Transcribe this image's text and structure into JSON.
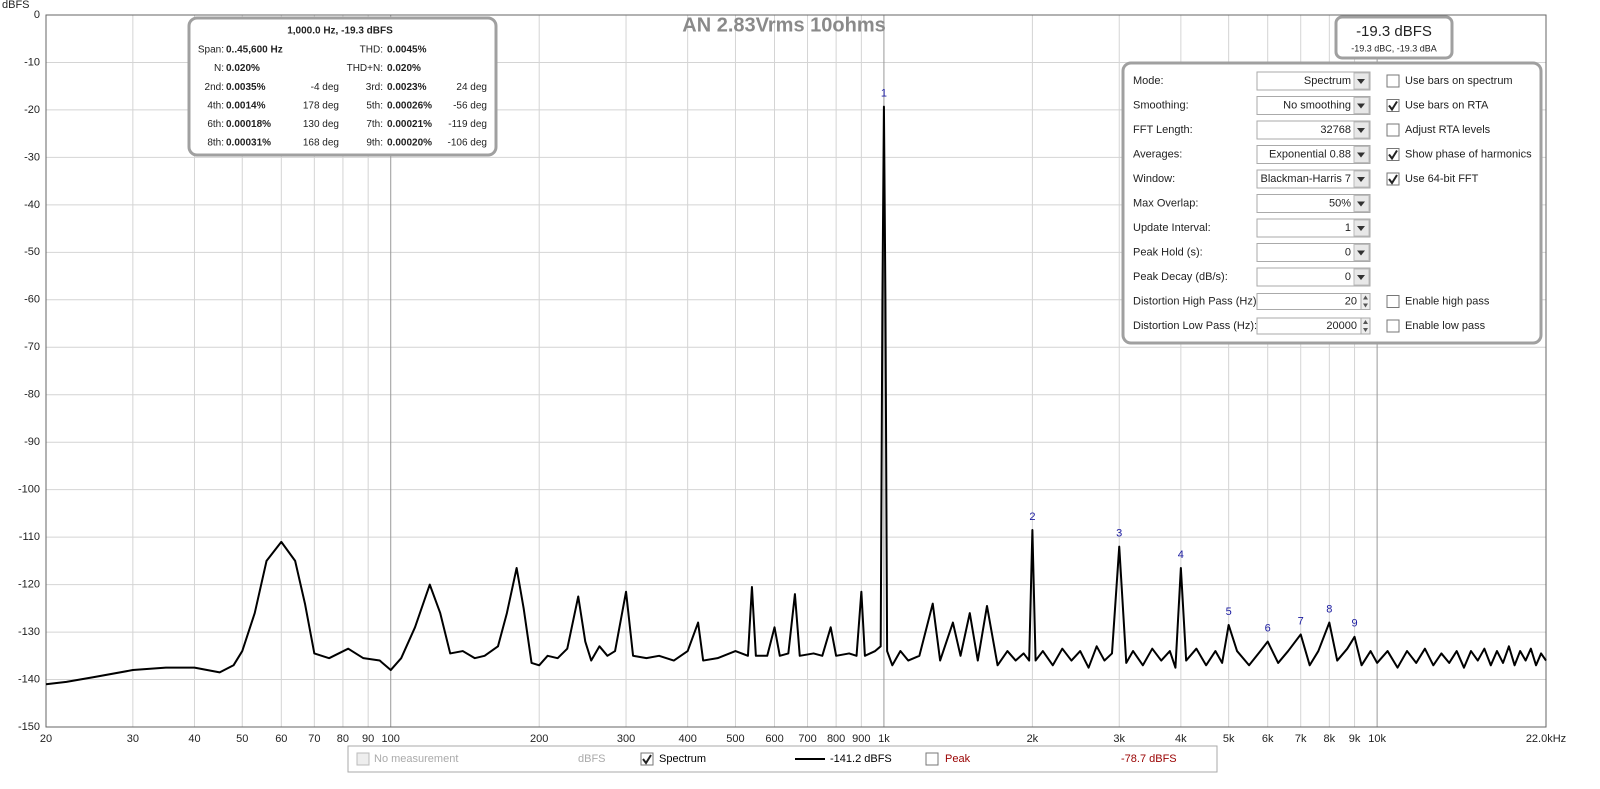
{
  "chart_data": {
    "type": "line",
    "title": "AN 2.83Vrms 10ohms",
    "y_label": "dBFS",
    "xscale": "log",
    "xlim": [
      20,
      22000
    ],
    "ylim": [
      -150,
      0
    ],
    "grid": true,
    "xticks": [
      20,
      30,
      40,
      50,
      60,
      70,
      80,
      90,
      100,
      200,
      300,
      400,
      500,
      600,
      700,
      800,
      900,
      {
        "value": 1000,
        "label": "1k"
      },
      {
        "value": 2000,
        "label": "2k"
      },
      {
        "value": 3000,
        "label": "3k"
      },
      {
        "value": 4000,
        "label": "4k"
      },
      {
        "value": 5000,
        "label": "5k"
      },
      {
        "value": 6000,
        "label": "6k"
      },
      {
        "value": 7000,
        "label": "7k"
      },
      {
        "value": 8000,
        "label": "8k"
      },
      {
        "value": 9000,
        "label": "9k"
      },
      {
        "value": 10000,
        "label": "10k"
      },
      {
        "value": 22000,
        "label": "22.0kHz"
      }
    ],
    "yticks": [
      0,
      -10,
      -20,
      -30,
      -40,
      -50,
      -60,
      -70,
      -80,
      -90,
      -100,
      -110,
      -120,
      -130,
      -140,
      -150
    ],
    "x": [
      20,
      22,
      25,
      30,
      35,
      40,
      45,
      48,
      50,
      53,
      56,
      60,
      64,
      67,
      70,
      75,
      82,
      88,
      95,
      100,
      105,
      112,
      120,
      126,
      132,
      140,
      148,
      155,
      165,
      172,
      180,
      186,
      193,
      200,
      208,
      218,
      228,
      240,
      248,
      255,
      265,
      275,
      285,
      300,
      310,
      330,
      350,
      375,
      400,
      420,
      430,
      460,
      500,
      530,
      540,
      550,
      580,
      600,
      615,
      640,
      660,
      675,
      720,
      750,
      780,
      800,
      850,
      880,
      900,
      915,
      960,
      985,
      993,
      1000,
      1007,
      1015,
      1040,
      1080,
      1120,
      1180,
      1256,
      1300,
      1380,
      1430,
      1493,
      1550,
      1618,
      1700,
      1780,
      1850,
      1920,
      1970,
      2000,
      2030,
      2100,
      2200,
      2300,
      2400,
      2500,
      2600,
      2700,
      2800,
      2900,
      3000,
      3100,
      3200,
      3350,
      3500,
      3650,
      3800,
      3900,
      4000,
      4100,
      4300,
      4500,
      4700,
      4850,
      5000,
      5200,
      5500,
      5800,
      6000,
      6300,
      6600,
      7000,
      7300,
      7600,
      8000,
      8300,
      8700,
      9000,
      9300,
      9700,
      10000,
      10500,
      11000,
      11500,
      12000,
      12500,
      13000,
      13500,
      14000,
      14500,
      15000,
      15500,
      16000,
      16500,
      17000,
      17500,
      18000,
      18500,
      19000,
      19500,
      20000,
      20500,
      21000,
      21500,
      22000
    ],
    "series": [
      {
        "name": "Spectrum",
        "color": "#000000",
        "values": [
          -141,
          -140.5,
          -139.5,
          -138,
          -137.5,
          -137.5,
          -138.5,
          -137,
          -134,
          -126,
          -115,
          -111,
          -115,
          -124,
          -134.5,
          -135.5,
          -133.5,
          -135.5,
          -136,
          -138,
          -135.5,
          -129,
          -120,
          -126,
          -134.5,
          -134,
          -135.5,
          -135,
          -133,
          -126,
          -116.5,
          -125,
          -136.5,
          -137,
          -135,
          -135.5,
          -133.5,
          -122.5,
          -132,
          -136,
          -133,
          -135,
          -134,
          -121.5,
          -135,
          -135.5,
          -135,
          -136,
          -134,
          -128,
          -136,
          -135.5,
          -134,
          -135,
          -120.5,
          -135,
          -135,
          -129,
          -135,
          -134.5,
          -122,
          -135,
          -134.5,
          -135,
          -129,
          -135,
          -134.5,
          -135,
          -121.5,
          -135,
          -134,
          -133,
          -60,
          -19.3,
          -60,
          -134,
          -137,
          -134,
          -136,
          -135,
          -124,
          -136,
          -128,
          -135,
          -126,
          -136,
          -124.5,
          -137,
          -134,
          -136,
          -134.5,
          -136,
          -108.5,
          -136,
          -134,
          -137,
          -133.5,
          -136,
          -134,
          -137.5,
          -133,
          -136,
          -134.5,
          -112,
          -136.5,
          -134,
          -137,
          -133.5,
          -136,
          -134,
          -137.5,
          -116.5,
          -136,
          -133.5,
          -137,
          -134,
          -136.5,
          -128.5,
          -134,
          -137,
          -134,
          -132,
          -136.5,
          -134,
          -130.5,
          -137,
          -134,
          -128,
          -136,
          -133.5,
          -131,
          -137,
          -134,
          -136.5,
          -134,
          -137.5,
          -134,
          -136.5,
          -133.5,
          -137,
          -134.5,
          -136.5,
          -134,
          -137.5,
          -134,
          -136,
          -133.5,
          -137,
          -134,
          -136.5,
          -133,
          -137,
          -134,
          -136,
          -133.5,
          -137,
          -134.5,
          -136
        ]
      }
    ],
    "harmonic_markers": [
      {
        "label": "1",
        "x": 1000,
        "y": -19.3
      },
      {
        "label": "2",
        "x": 2000,
        "y": -108.5
      },
      {
        "label": "3",
        "x": 3000,
        "y": -112
      },
      {
        "label": "4",
        "x": 4000,
        "y": -116.5
      },
      {
        "label": "5",
        "x": 5000,
        "y": -128.5
      },
      {
        "label": "6",
        "x": 6000,
        "y": -132
      },
      {
        "label": "7",
        "x": 7000,
        "y": -130.5
      },
      {
        "label": "8",
        "x": 8000,
        "y": -128
      },
      {
        "label": "9",
        "x": 9000,
        "y": -131
      }
    ]
  },
  "stats": {
    "title": "1,000.0 Hz, -19.3 dBFS",
    "rows": [
      [
        {
          "label": "Span:",
          "value": "0..45,600 Hz"
        },
        {
          "label": "THD:",
          "value": "0.0045%"
        }
      ],
      [
        {
          "label": "N:",
          "value": "0.020%"
        },
        {
          "label": "THD+N:",
          "value": "0.020%"
        }
      ],
      [
        {
          "label": "2nd:",
          "value": "0.0035%",
          "phase": "-4 deg"
        },
        {
          "label": "3rd:",
          "value": "0.0023%",
          "phase": "24 deg"
        }
      ],
      [
        {
          "label": "4th:",
          "value": "0.0014%",
          "phase": "178 deg"
        },
        {
          "label": "5th:",
          "value": "0.00026%",
          "phase": "-56 deg"
        }
      ],
      [
        {
          "label": "6th:",
          "value": "0.00018%",
          "phase": "130 deg"
        },
        {
          "label": "7th:",
          "value": "0.00021%",
          "phase": "-119 deg"
        }
      ],
      [
        {
          "label": "8th:",
          "value": "0.00031%",
          "phase": "168 deg"
        },
        {
          "label": "9th:",
          "value": "0.00020%",
          "phase": "-106 deg"
        }
      ]
    ]
  },
  "level": {
    "main": "-19.3 dBFS",
    "sub": "-19.3 dBC, -19.3 dBA"
  },
  "controls": [
    {
      "label": "Mode:",
      "value": "Spectrum",
      "kind": "dropdown",
      "option": {
        "label": "Use bars on spectrum",
        "checked": false
      }
    },
    {
      "label": "Smoothing:",
      "value": "No  smoothing",
      "kind": "dropdown",
      "option": {
        "label": "Use bars on RTA",
        "checked": true
      }
    },
    {
      "label": "FFT Length:",
      "value": "32768",
      "kind": "dropdown",
      "option": {
        "label": "Adjust RTA levels",
        "checked": false
      }
    },
    {
      "label": "Averages:",
      "value": "Exponential 0.88",
      "kind": "dropdown",
      "option": {
        "label": "Show phase of harmonics",
        "checked": true
      }
    },
    {
      "label": "Window:",
      "value": "Blackman-Harris 7",
      "kind": "dropdown",
      "option": {
        "label": "Use 64-bit FFT",
        "checked": true
      }
    },
    {
      "label": "Max Overlap:",
      "value": "50%",
      "kind": "dropdown"
    },
    {
      "label": "Update Interval:",
      "value": "1",
      "kind": "dropdown"
    },
    {
      "label": "Peak Hold (s):",
      "value": "0",
      "kind": "dropdown"
    },
    {
      "label": "Peak Decay (dB/s):",
      "value": "0",
      "kind": "dropdown"
    },
    {
      "label": "Distortion High Pass (Hz):",
      "value": "20",
      "kind": "spin",
      "option": {
        "label": "Enable high pass",
        "checked": false
      }
    },
    {
      "label": "Distortion Low Pass (Hz):",
      "value": "20000",
      "kind": "spin",
      "option": {
        "label": "Enable low pass",
        "checked": false
      }
    }
  ],
  "legend_bar": [
    {
      "label": "No measurement",
      "checked": false,
      "disabled": true,
      "reading": "dBFS"
    },
    {
      "series": 0,
      "checked": true,
      "reading": "-141.2 dBFS"
    },
    {
      "label": "Peak",
      "checked": false,
      "color": "#990000",
      "reading": "-78.7 dBFS"
    }
  ]
}
